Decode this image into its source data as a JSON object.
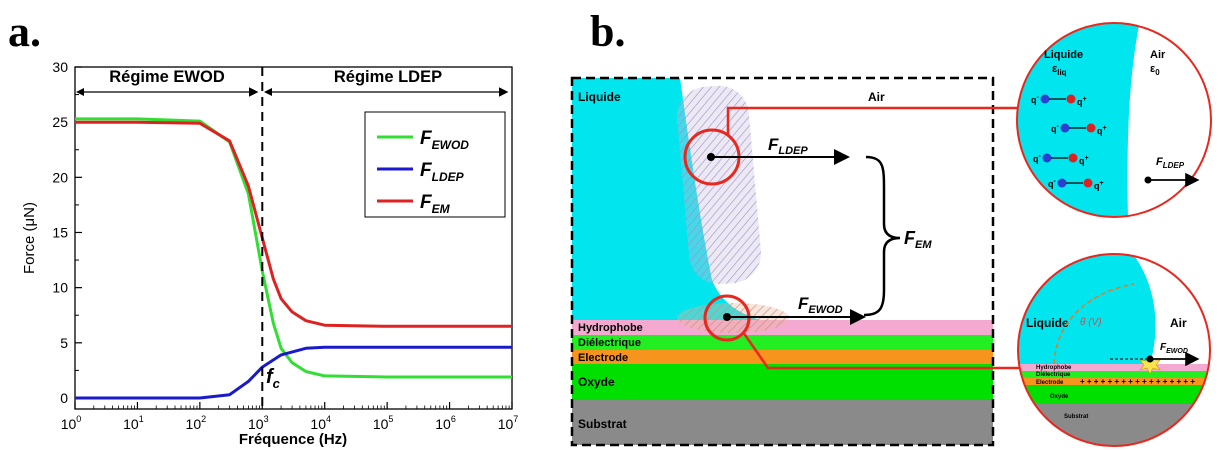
{
  "panels": {
    "a_letter": "a.",
    "b_letter": "b."
  },
  "chart_data": {
    "type": "line",
    "x_scale": "log",
    "xlabel": "Fréquence (Hz)",
    "ylabel": "Force (μN)",
    "xlim": [
      1,
      10000000
    ],
    "ylim": [
      -1,
      30
    ],
    "xticks": [
      {
        "v": 1,
        "b": "10",
        "e": "0"
      },
      {
        "v": 10,
        "b": "10",
        "e": "1"
      },
      {
        "v": 100,
        "b": "10",
        "e": "2"
      },
      {
        "v": 1000,
        "b": "10",
        "e": "3"
      },
      {
        "v": 10000,
        "b": "10",
        "e": "4"
      },
      {
        "v": 100000,
        "b": "10",
        "e": "5"
      },
      {
        "v": 1000000,
        "b": "10",
        "e": "6"
      },
      {
        "v": 10000000,
        "b": "10",
        "e": "7"
      }
    ],
    "yticks": [
      "0",
      "5",
      "10",
      "15",
      "20",
      "25",
      "30"
    ],
    "regime_left": "Régime EWOD",
    "regime_right": "Régime LDEP",
    "cutoff": {
      "x": 1000,
      "main": "f",
      "sub": "c"
    },
    "series": [
      {
        "name": "F",
        "sub": "EWOD",
        "color": "#33dd33",
        "points": [
          [
            1,
            25.3
          ],
          [
            10,
            25.3
          ],
          [
            100,
            25.1
          ],
          [
            300,
            23.2
          ],
          [
            600,
            18.5
          ],
          [
            1000,
            11.5
          ],
          [
            1500,
            6.8
          ],
          [
            2000,
            4.5
          ],
          [
            3000,
            3.2
          ],
          [
            5000,
            2.4
          ],
          [
            10000,
            2.0
          ],
          [
            100000,
            1.9
          ],
          [
            10000000,
            1.9
          ]
        ]
      },
      {
        "name": "F",
        "sub": "LDEP",
        "color": "#1a1acc",
        "points": [
          [
            1,
            0
          ],
          [
            100,
            0
          ],
          [
            300,
            0.3
          ],
          [
            600,
            1.5
          ],
          [
            1000,
            2.8
          ],
          [
            2000,
            3.9
          ],
          [
            5000,
            4.5
          ],
          [
            10000,
            4.6
          ],
          [
            100000,
            4.6
          ],
          [
            10000000,
            4.6
          ]
        ]
      },
      {
        "name": "F",
        "sub": "EM",
        "color": "#dd2222",
        "points": [
          [
            1,
            25
          ],
          [
            10,
            25
          ],
          [
            100,
            24.9
          ],
          [
            300,
            23.3
          ],
          [
            600,
            19.2
          ],
          [
            1000,
            14.5
          ],
          [
            1500,
            10.8
          ],
          [
            2000,
            9.0
          ],
          [
            3000,
            7.8
          ],
          [
            5000,
            7.0
          ],
          [
            10000,
            6.6
          ],
          [
            100000,
            6.5
          ],
          [
            10000000,
            6.5
          ]
        ]
      }
    ]
  },
  "diagram": {
    "liquide": "Liquide",
    "air": "Air",
    "f_ldep": {
      "main": "F",
      "sub": "LDEP"
    },
    "f_ewod": {
      "main": "F",
      "sub": "EWOD"
    },
    "f_em": {
      "main": "F",
      "sub": "EM"
    },
    "layers": [
      "Hydrophobe",
      "Diélectrique",
      "Electrode",
      "Oxyde",
      "Substrat"
    ],
    "colors": {
      "liquid": "#00e5ee",
      "hydrophobe": "#f4a9d0",
      "dielectric": "#22ee22",
      "electrode": "#f7941d",
      "oxyde": "#00e000",
      "substrat": "#8a8a8a",
      "highlight": "#e8281e"
    }
  },
  "zoom_top": {
    "liquide": "Liquide",
    "eps_liq": {
      "main": "ε",
      "sub": "liq"
    },
    "air": "Air",
    "eps_0": {
      "main": "ε",
      "sub": "0"
    },
    "q_minus": "q",
    "q_plus": "q",
    "force": {
      "main": "F",
      "sub": "LDEP"
    }
  },
  "zoom_bottom": {
    "liquide": "Liquide",
    "air": "Air",
    "angle": "θ (V)",
    "force": {
      "main": "F",
      "sub": "EWOD"
    },
    "hydrophobe": "Hydrophobe",
    "dielectric": "Diélectrique",
    "electrode": "Electrode",
    "oxyde": "Oxyde",
    "substrat": "Substrat",
    "charges": "+ + + + + + + + + + + + + + + + +"
  }
}
